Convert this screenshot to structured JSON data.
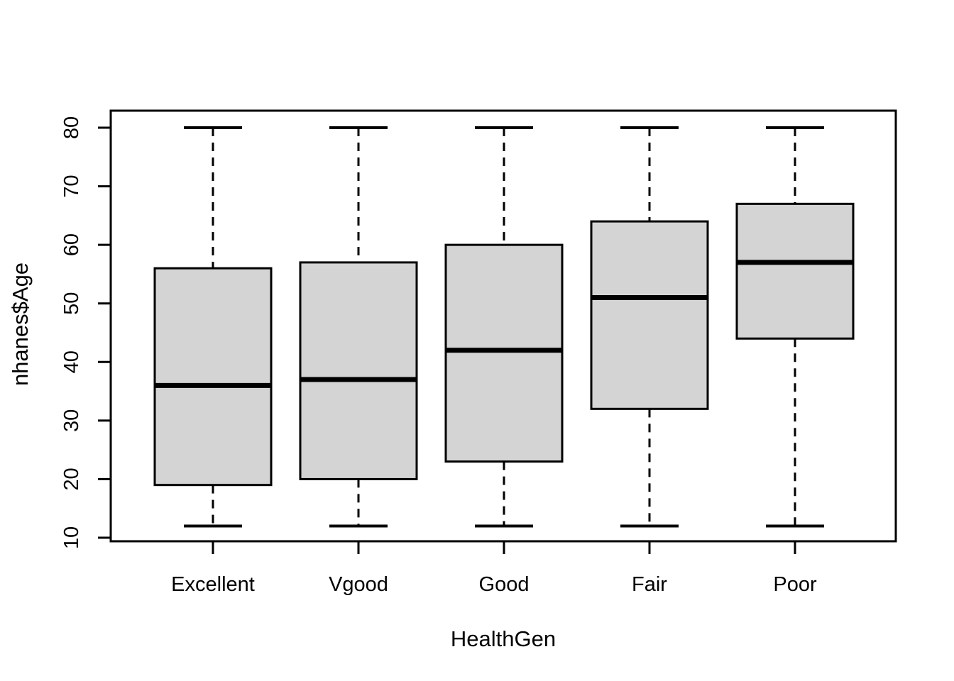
{
  "figure": {
    "xlabel": "HealthGen",
    "ylabel": "nhanes$Age"
  },
  "chart_data": {
    "type": "boxplot",
    "title": "",
    "xlabel": "HealthGen",
    "ylabel": "nhanes$Age",
    "categories": [
      "Excellent",
      "Vgood",
      "Good",
      "Fair",
      "Poor"
    ],
    "series": [
      {
        "name": "Excellent",
        "whisker_low": 12,
        "q1": 19,
        "median": 36,
        "q3": 56,
        "whisker_high": 80
      },
      {
        "name": "Vgood",
        "whisker_low": 12,
        "q1": 20,
        "median": 37,
        "q3": 57,
        "whisker_high": 80
      },
      {
        "name": "Good",
        "whisker_low": 12,
        "q1": 23,
        "median": 42,
        "q3": 60,
        "whisker_high": 80
      },
      {
        "name": "Fair",
        "whisker_low": 12,
        "q1": 32,
        "median": 51,
        "q3": 64,
        "whisker_high": 80
      },
      {
        "name": "Poor",
        "whisker_low": 12,
        "q1": 44,
        "median": 57,
        "q3": 67,
        "whisker_high": 80
      }
    ],
    "ylim": [
      10,
      80
    ],
    "yticks": [
      10,
      20,
      30,
      40,
      50,
      60,
      70,
      80
    ],
    "grid": false,
    "legend": null,
    "colors": {
      "box_fill": "#d4d4d4",
      "line": "#000000",
      "background": "#ffffff"
    }
  }
}
